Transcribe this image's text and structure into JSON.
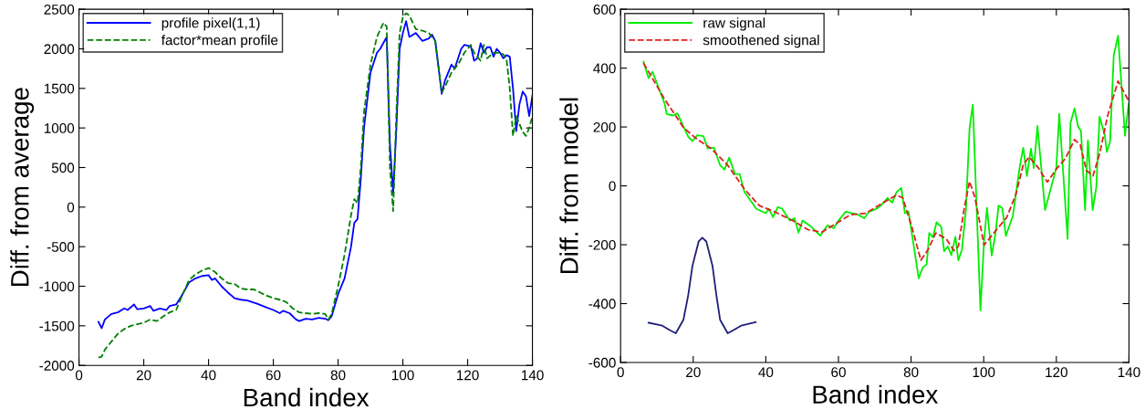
{
  "chart_data": [
    {
      "type": "line",
      "xlabel": "Band index",
      "ylabel": "Diff. from average",
      "xlim": [
        0,
        140
      ],
      "xticks": [
        0,
        20,
        40,
        60,
        80,
        100,
        120,
        140
      ],
      "ylim": [
        -2000,
        2500
      ],
      "yticks": [
        -2000,
        -1500,
        -1000,
        -500,
        0,
        500,
        1000,
        1500,
        2000,
        2500
      ],
      "legend": "top left",
      "grid": false,
      "series": [
        {
          "name": "profile pixel(1,1)",
          "color": "#0000ff",
          "line_style": "solid",
          "x": [
            6,
            7,
            8,
            10,
            12,
            14,
            15,
            17,
            18,
            20,
            22,
            23,
            25,
            27,
            28,
            30,
            32,
            34,
            36,
            38,
            40,
            41,
            42,
            44,
            46,
            48,
            50,
            52,
            55,
            58,
            60,
            62,
            63,
            65,
            67,
            68,
            70,
            72,
            74,
            76,
            77,
            78,
            80,
            82,
            84,
            85,
            86,
            87,
            88,
            90,
            92,
            93,
            95,
            96,
            97,
            98,
            99,
            100,
            101,
            102,
            104,
            106,
            108,
            109,
            110,
            112,
            113,
            115,
            116,
            118,
            119,
            121,
            122,
            123,
            124,
            125,
            126,
            127,
            128,
            129,
            130,
            131,
            132,
            133,
            134,
            135,
            136,
            137,
            138,
            139,
            140
          ],
          "values": [
            -1450,
            -1530,
            -1420,
            -1350,
            -1330,
            -1280,
            -1300,
            -1230,
            -1290,
            -1280,
            -1250,
            -1310,
            -1280,
            -1300,
            -1250,
            -1230,
            -1100,
            -950,
            -900,
            -870,
            -860,
            -920,
            -900,
            -1000,
            -1080,
            -1150,
            -1170,
            -1180,
            -1220,
            -1270,
            -1300,
            -1340,
            -1310,
            -1340,
            -1420,
            -1440,
            -1410,
            -1420,
            -1400,
            -1410,
            -1430,
            -1380,
            -1100,
            -900,
            -500,
            -200,
            -150,
            350,
            1000,
            1700,
            1950,
            2000,
            2150,
            800,
            180,
            1000,
            2000,
            2200,
            2350,
            2150,
            2200,
            2100,
            2130,
            2180,
            2100,
            1430,
            1600,
            1800,
            1750,
            2000,
            2050,
            2030,
            1850,
            1880,
            2070,
            1950,
            2020,
            2020,
            1900,
            2000,
            1950,
            1880,
            1920,
            1900,
            1500,
            960,
            1300,
            1460,
            1400,
            1150,
            1410
          ]
        },
        {
          "name": "factor*mean profile",
          "color": "#008000",
          "line_style": "dashed",
          "x": [
            6,
            7,
            8,
            10,
            12,
            14,
            16,
            18,
            20,
            22,
            24,
            26,
            28,
            30,
            32,
            34,
            36,
            38,
            40,
            42,
            44,
            46,
            48,
            50,
            52,
            54,
            56,
            58,
            60,
            62,
            64,
            66,
            68,
            70,
            72,
            74,
            76,
            77,
            78,
            80,
            82,
            84,
            85,
            86,
            87,
            88,
            90,
            92,
            94,
            95,
            96,
            97,
            98,
            99,
            100,
            101,
            102,
            104,
            106,
            108,
            110,
            112,
            113,
            115,
            117,
            119,
            121,
            122,
            124,
            125,
            126,
            128,
            130,
            131,
            132,
            133,
            134,
            135,
            136,
            137,
            138,
            139,
            140
          ],
          "values": [
            -1900,
            -1890,
            -1800,
            -1700,
            -1600,
            -1540,
            -1500,
            -1480,
            -1460,
            -1420,
            -1440,
            -1380,
            -1330,
            -1300,
            -1100,
            -920,
            -850,
            -800,
            -770,
            -820,
            -900,
            -960,
            -970,
            -1030,
            -1040,
            -1040,
            -1080,
            -1120,
            -1150,
            -1170,
            -1200,
            -1280,
            -1330,
            -1340,
            -1350,
            -1340,
            -1350,
            -1420,
            -1350,
            -1000,
            -600,
            -100,
            100,
            50,
            500,
            1200,
            1800,
            2150,
            2330,
            2280,
            500,
            -50,
            1200,
            2200,
            2400,
            2450,
            2420,
            2250,
            2230,
            2200,
            2100,
            1450,
            1520,
            1700,
            1800,
            1950,
            2050,
            1950,
            1850,
            2050,
            1880,
            1950,
            1950,
            1930,
            1870,
            1500,
            900,
            1150,
            1050,
            950,
            900,
            1000,
            1150
          ]
        }
      ]
    },
    {
      "type": "line",
      "xlabel": "Band index",
      "ylabel": "Diff. from model",
      "xlim": [
        0,
        140
      ],
      "xticks": [
        0,
        20,
        40,
        60,
        80,
        100,
        120,
        140
      ],
      "ylim": [
        -600,
        600
      ],
      "yticks": [
        -600,
        -400,
        -200,
        0,
        200,
        400,
        600
      ],
      "legend": "top left",
      "grid": false,
      "series": [
        {
          "name": "raw signal",
          "color": "#00ee00",
          "line_style": "solid",
          "x": [
            6.3,
            7.7,
            8.8,
            12.1,
            12.7,
            14.4,
            15.6,
            18.6,
            19.8,
            21.1,
            22.8,
            24,
            25.7,
            27.4,
            28.6,
            29.9,
            31.5,
            32.8,
            34.1,
            37.4,
            40,
            40.8,
            42,
            43.3,
            44.5,
            46.6,
            47.9,
            49,
            50.1,
            52.5,
            55,
            57,
            58.7,
            60,
            62,
            63.8,
            65.4,
            67.1,
            68.4,
            70.5,
            71.7,
            73.5,
            74.8,
            76,
            77.3,
            78.3,
            79.3,
            82.1,
            83.2,
            84.3,
            85,
            86,
            87,
            88.3,
            89.1,
            90.1,
            91.1,
            92.2,
            93,
            94,
            95.1,
            96.1,
            97,
            99.1,
            100.1,
            100.9,
            102.2,
            103.2,
            104.1,
            105.1,
            106.1,
            108,
            110,
            110.9,
            111.9,
            113,
            113.8,
            114.8,
            116.9,
            120,
            120.8,
            123.1,
            123.9,
            125,
            126,
            126.8,
            127.9,
            128.7,
            130,
            131,
            131.9,
            133.3,
            133.9,
            134.8,
            135.8,
            137,
            138.9,
            139.9
          ],
          "values": [
            422,
            366,
            387,
            280,
            244,
            239,
            247,
            167,
            152,
            172,
            169,
            127,
            130,
            70,
            55,
            96,
            40,
            40,
            -21,
            -78,
            -93,
            -78,
            -106,
            -72,
            -78,
            -118,
            -110,
            -159,
            -118,
            -139,
            -169,
            -134,
            -144,
            -118,
            -88,
            -93,
            -98,
            -110,
            -88,
            -78,
            -67,
            -41,
            -57,
            -21,
            -7,
            -93,
            -88,
            -314,
            -278,
            -266,
            -160,
            -175,
            -124,
            -139,
            -222,
            -206,
            -235,
            -173,
            -253,
            -216,
            -82,
            196,
            276,
            -423,
            -186,
            -75,
            -237,
            -165,
            -67,
            -75,
            -170,
            -103,
            72,
            129,
            33,
            126,
            60,
            204,
            -82,
            62,
            245,
            -180,
            214,
            263,
            201,
            186,
            -82,
            155,
            -82,
            -5,
            235,
            175,
            115,
            150,
            443,
            510,
            170,
            278
          ]
        },
        {
          "name": "smoothened signal",
          "color": "#e02020",
          "line_style": "dashed",
          "x": [
            6.3,
            12.1,
            17.3,
            20.7,
            24.9,
            29.5,
            34.1,
            38.2,
            42.4,
            47.4,
            51.6,
            55.4,
            59.2,
            63.3,
            67.5,
            71.7,
            76,
            77.7,
            80.2,
            82.7,
            84.7,
            86.8,
            89.7,
            91.8,
            93,
            94.7,
            96.1,
            97.6,
            100.1,
            102.6,
            106.3,
            108.8,
            110.9,
            112.5,
            115,
            117.5,
            120,
            122.5,
            125,
            126.6,
            128.3,
            130.1,
            132,
            134.1,
            137,
            139.9
          ],
          "values": [
            417,
            295,
            198,
            162,
            127,
            70,
            -11,
            -67,
            -88,
            -118,
            -149,
            -157,
            -129,
            -98,
            -93,
            -62,
            -31,
            -41,
            -139,
            -253,
            -216,
            -160,
            -180,
            -220,
            -206,
            -72,
            15,
            -41,
            -201,
            -163,
            -108,
            -31,
            72,
            98,
            62,
            13,
            57,
            93,
            157,
            139,
            52,
            34,
            113,
            237,
            356,
            289
          ]
        },
        {
          "color": "#1f1f7a",
          "line_style": "solid",
          "x": [
            7.7,
            11.5,
            13.5,
            15.2,
            17.3,
            18.6,
            19.8,
            21.5,
            22.5,
            23.6,
            25.3,
            26.4,
            27.4,
            29.5,
            31.1,
            33.2,
            37.2
          ],
          "values": [
            -465,
            -475,
            -490,
            -501,
            -455,
            -373,
            -271,
            -189,
            -176,
            -189,
            -271,
            -373,
            -455,
            -501,
            -490,
            -475,
            -463
          ]
        }
      ]
    }
  ]
}
